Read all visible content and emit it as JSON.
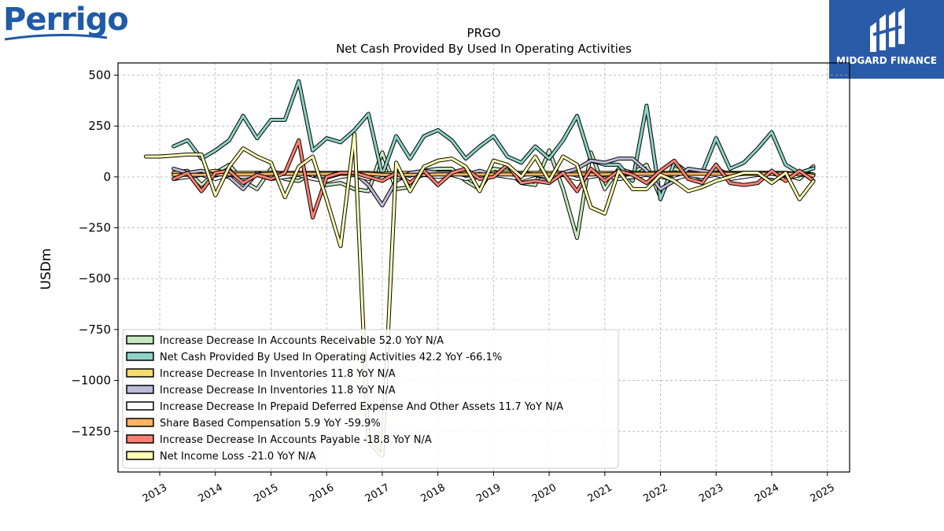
{
  "logos": {
    "left": "Perrigo",
    "right": "MIDGARD FINANCE"
  },
  "colors": {
    "accounts_receivable": "#c7e9c0",
    "net_cash": "#8dd3c7",
    "inventories_yellow": "#f7dd6a",
    "inventories_purple": "#bebada",
    "prepaid": "#ffffff",
    "share_based": "#fdb462",
    "accounts_payable": "#fb8072",
    "net_income": "#ffffb3"
  },
  "chart_data": {
    "type": "line",
    "title": "PRGO",
    "subtitle": "Net Cash Provided By Used In Operating Activities",
    "ylabel": "USDm",
    "xlabel": "",
    "xlim": [
      2012.25,
      2025.4
    ],
    "ylim": [
      -1450,
      560
    ],
    "yticks": [
      500,
      250,
      0,
      -250,
      -500,
      -750,
      -1000,
      -1250
    ],
    "ytick_labels": [
      "500",
      "250",
      "0",
      "−250",
      "−500",
      "−750",
      "−1000",
      "−1250"
    ],
    "xticks": [
      2013,
      2014,
      2015,
      2016,
      2017,
      2018,
      2019,
      2020,
      2021,
      2022,
      2023,
      2024,
      2025
    ],
    "xtick_labels": [
      "2013",
      "2014",
      "2015",
      "2016",
      "2017",
      "2018",
      "2019",
      "2020",
      "2021",
      "2022",
      "2023",
      "2024",
      "2025"
    ],
    "grid": true,
    "legend_position": "lower-left",
    "series": [
      {
        "name": "Increase Decrease In Accounts Receivable  52.0 YoY N/A",
        "color_key": "accounts_receivable",
        "x": [
          2013.25,
          2013.5,
          2013.75,
          2014.0,
          2014.25,
          2014.5,
          2014.75,
          2015.0,
          2015.25,
          2015.5,
          2015.75,
          2016.0,
          2016.25,
          2016.5,
          2016.75,
          2017.0,
          2017.25,
          2017.5,
          2017.75,
          2018.0,
          2018.25,
          2018.5,
          2018.75,
          2019.0,
          2019.25,
          2019.5,
          2019.75,
          2020.0,
          2020.25,
          2020.5,
          2020.75,
          2021.0,
          2021.25,
          2021.5,
          2021.75,
          2022.0,
          2022.25,
          2022.5,
          2022.75,
          2023.0,
          2023.25,
          2023.5,
          2023.75,
          2024.0,
          2024.25,
          2024.5,
          2024.75
        ],
        "y": [
          20,
          30,
          -40,
          20,
          60,
          -20,
          -60,
          40,
          -10,
          -20,
          20,
          -40,
          -30,
          -60,
          -70,
          120,
          -60,
          -50,
          30,
          40,
          40,
          -20,
          -60,
          40,
          30,
          -30,
          -40,
          130,
          -60,
          -300,
          120,
          -60,
          40,
          20,
          60,
          -100,
          40,
          20,
          -10,
          40,
          10,
          20,
          20,
          -20,
          10,
          -10,
          52
        ]
      },
      {
        "name": "Net Cash Provided By Used In Operating Activities  42.2 YoY -66.1%",
        "color_key": "net_cash",
        "x": [
          2013.25,
          2013.5,
          2013.75,
          2014.0,
          2014.25,
          2014.5,
          2014.75,
          2015.0,
          2015.25,
          2015.5,
          2015.75,
          2016.0,
          2016.25,
          2016.5,
          2016.75,
          2017.0,
          2017.25,
          2017.5,
          2017.75,
          2018.0,
          2018.25,
          2018.5,
          2018.75,
          2019.0,
          2019.25,
          2019.5,
          2019.75,
          2020.0,
          2020.25,
          2020.5,
          2020.75,
          2021.0,
          2021.25,
          2021.5,
          2021.75,
          2022.0,
          2022.25,
          2022.5,
          2022.75,
          2023.0,
          2023.25,
          2023.5,
          2023.75,
          2024.0,
          2024.25,
          2024.5,
          2024.75
        ],
        "y": [
          150,
          180,
          90,
          130,
          180,
          300,
          190,
          280,
          280,
          470,
          130,
          190,
          170,
          230,
          310,
          10,
          200,
          90,
          200,
          230,
          180,
          90,
          150,
          200,
          100,
          70,
          150,
          90,
          180,
          300,
          80,
          60,
          60,
          -20,
          350,
          -110,
          70,
          20,
          20,
          190,
          40,
          70,
          140,
          220,
          60,
          20,
          42
        ]
      },
      {
        "name": "Increase Decrease In Inventories  11.8 YoY N/A",
        "color_key": "inventories_yellow",
        "x": [
          2013.25,
          2013.5,
          2013.75,
          2014.0,
          2014.25,
          2014.5,
          2014.75,
          2015.0,
          2015.25,
          2015.5,
          2015.75,
          2016.0,
          2016.25,
          2016.5,
          2016.75,
          2017.0,
          2017.25,
          2017.5,
          2017.75,
          2018.0,
          2018.25,
          2018.5,
          2018.75,
          2019.0,
          2019.25,
          2019.5,
          2019.75,
          2020.0,
          2020.25,
          2020.5,
          2020.75,
          2021.0,
          2021.25,
          2021.5,
          2021.75,
          2022.0,
          2022.25,
          2022.5,
          2022.75,
          2023.0,
          2023.25,
          2023.5,
          2023.75,
          2024.0,
          2024.25,
          2024.5,
          2024.75
        ],
        "y": [
          20,
          20,
          20,
          30,
          20,
          20,
          20,
          20,
          20,
          20,
          20,
          20,
          20,
          20,
          20,
          15,
          20,
          20,
          20,
          20,
          20,
          20,
          20,
          20,
          20,
          20,
          20,
          20,
          20,
          20,
          20,
          20,
          20,
          20,
          20,
          20,
          20,
          20,
          20,
          20,
          20,
          20,
          20,
          20,
          20,
          15,
          12
        ]
      },
      {
        "name": "Increase Decrease In Inventories  11.8 YoY N/A",
        "color_key": "inventories_purple",
        "x": [
          2013.25,
          2013.5,
          2013.75,
          2014.0,
          2014.25,
          2014.5,
          2014.75,
          2015.0,
          2015.25,
          2015.5,
          2015.75,
          2016.0,
          2016.25,
          2016.5,
          2016.75,
          2017.0,
          2017.25,
          2017.5,
          2017.75,
          2018.0,
          2018.25,
          2018.5,
          2018.75,
          2019.0,
          2019.25,
          2019.5,
          2019.75,
          2020.0,
          2020.25,
          2020.5,
          2020.75,
          2021.0,
          2021.25,
          2021.5,
          2021.75,
          2022.0,
          2022.25,
          2022.5,
          2022.75,
          2023.0,
          2023.25,
          2023.5,
          2023.75,
          2024.0,
          2024.25,
          2024.5,
          2024.75
        ],
        "y": [
          40,
          20,
          30,
          10,
          0,
          -60,
          20,
          0,
          10,
          10,
          -10,
          10,
          20,
          20,
          -40,
          -140,
          -20,
          20,
          30,
          20,
          20,
          10,
          30,
          10,
          10,
          20,
          10,
          -10,
          20,
          40,
          80,
          70,
          90,
          90,
          30,
          -60,
          -20,
          40,
          30,
          20,
          20,
          10,
          20,
          20,
          10,
          20,
          12
        ]
      },
      {
        "name": "Increase Decrease In Prepaid Deferred Expense And Other Assets  11.7 YoY N/A",
        "color_key": "prepaid",
        "x": [
          2013.25,
          2013.5,
          2013.75,
          2014.0,
          2014.25,
          2014.5,
          2014.75,
          2015.0,
          2015.25,
          2015.5,
          2015.75,
          2016.0,
          2016.25,
          2016.5,
          2016.75,
          2017.0,
          2017.25,
          2017.5,
          2017.75,
          2018.0,
          2018.25,
          2018.5,
          2018.75,
          2019.0,
          2019.25,
          2019.5,
          2019.75,
          2020.0,
          2020.25,
          2020.5,
          2020.75,
          2021.0,
          2021.25,
          2021.5,
          2021.75,
          2022.0,
          2022.25,
          2022.5,
          2022.75,
          2023.0,
          2023.25,
          2023.5,
          2023.75,
          2024.0,
          2024.25,
          2024.5,
          2024.75
        ],
        "y": [
          -10,
          0,
          10,
          -10,
          10,
          0,
          10,
          -10,
          0,
          10,
          -10,
          -20,
          0,
          10,
          -10,
          10,
          0,
          -10,
          10,
          0,
          10,
          -10,
          0,
          10,
          0,
          -10,
          10,
          0,
          10,
          -10,
          0,
          10,
          -10,
          0,
          10,
          0,
          -10,
          10,
          0,
          10,
          -10,
          0,
          10,
          0,
          -10,
          10,
          12
        ]
      },
      {
        "name": "Share Based Compensation  5.9 YoY -59.9%",
        "color_key": "share_based",
        "x": [
          2013.25,
          2013.5,
          2013.75,
          2014.0,
          2014.25,
          2014.5,
          2014.75,
          2015.0,
          2015.25,
          2015.5,
          2015.75,
          2016.0,
          2016.25,
          2016.5,
          2016.75,
          2017.0,
          2017.25,
          2017.5,
          2017.75,
          2018.0,
          2018.25,
          2018.5,
          2018.75,
          2019.0,
          2019.25,
          2019.5,
          2019.75,
          2020.0,
          2020.25,
          2020.5,
          2020.75,
          2021.0,
          2021.25,
          2021.5,
          2021.75,
          2022.0,
          2022.25,
          2022.5,
          2022.75,
          2023.0,
          2023.25,
          2023.5,
          2023.75,
          2024.0,
          2024.25,
          2024.5,
          2024.75
        ],
        "y": [
          10,
          10,
          10,
          12,
          12,
          12,
          12,
          15,
          15,
          15,
          15,
          15,
          15,
          15,
          15,
          10,
          10,
          10,
          10,
          12,
          12,
          12,
          12,
          12,
          12,
          12,
          12,
          12,
          12,
          12,
          12,
          12,
          15,
          15,
          15,
          15,
          15,
          15,
          15,
          15,
          15,
          15,
          15,
          15,
          15,
          15,
          6
        ]
      },
      {
        "name": "Increase Decrease In Accounts Payable  -18.8 YoY N/A",
        "color_key": "accounts_payable",
        "x": [
          2013.25,
          2013.5,
          2013.75,
          2014.0,
          2014.25,
          2014.5,
          2014.75,
          2015.0,
          2015.25,
          2015.5,
          2015.75,
          2016.0,
          2016.25,
          2016.5,
          2016.75,
          2017.0,
          2017.25,
          2017.5,
          2017.75,
          2018.0,
          2018.25,
          2018.5,
          2018.75,
          2019.0,
          2019.25,
          2019.5,
          2019.75,
          2020.0,
          2020.25,
          2020.5,
          2020.75,
          2021.0,
          2021.25,
          2021.5,
          2021.75,
          2022.0,
          2022.25,
          2022.5,
          2022.75,
          2023.0,
          2023.25,
          2023.5,
          2023.75,
          2024.0,
          2024.25,
          2024.5,
          2024.75
        ],
        "y": [
          -10,
          20,
          -70,
          20,
          30,
          -30,
          10,
          -10,
          20,
          180,
          -200,
          0,
          20,
          20,
          0,
          -20,
          20,
          -30,
          30,
          -40,
          20,
          40,
          -10,
          0,
          60,
          -30,
          -20,
          -30,
          20,
          -70,
          40,
          -20,
          30,
          10,
          -30,
          30,
          80,
          -10,
          -30,
          60,
          -30,
          -40,
          -30,
          30,
          -20,
          30,
          -19
        ]
      },
      {
        "name": "Net Income Loss  -21.0 YoY N/A",
        "color_key": "net_income",
        "x": [
          2012.75,
          2013.0,
          2013.25,
          2013.5,
          2013.75,
          2014.0,
          2014.25,
          2014.5,
          2014.75,
          2015.0,
          2015.25,
          2015.5,
          2015.75,
          2016.0,
          2016.25,
          2016.5,
          2016.75,
          2017.0,
          2017.25,
          2017.5,
          2017.75,
          2018.0,
          2018.25,
          2018.5,
          2018.75,
          2019.0,
          2019.25,
          2019.5,
          2019.75,
          2020.0,
          2020.25,
          2020.5,
          2020.75,
          2021.0,
          2021.25,
          2021.5,
          2021.75,
          2022.0,
          2022.25,
          2022.5,
          2022.75,
          2023.0,
          2023.25,
          2023.5,
          2023.75,
          2024.0,
          2024.25,
          2024.5,
          2024.75
        ],
        "y": [
          100,
          100,
          105,
          110,
          110,
          -90,
          50,
          140,
          100,
          70,
          -100,
          50,
          100,
          -110,
          -340,
          210,
          -1300,
          -1370,
          70,
          -70,
          50,
          80,
          90,
          50,
          -70,
          80,
          60,
          0,
          100,
          -20,
          100,
          60,
          -150,
          -180,
          30,
          -60,
          -60,
          10,
          -20,
          -70,
          -50,
          -20,
          0,
          20,
          20,
          -30,
          20,
          -110,
          -21
        ]
      }
    ]
  }
}
